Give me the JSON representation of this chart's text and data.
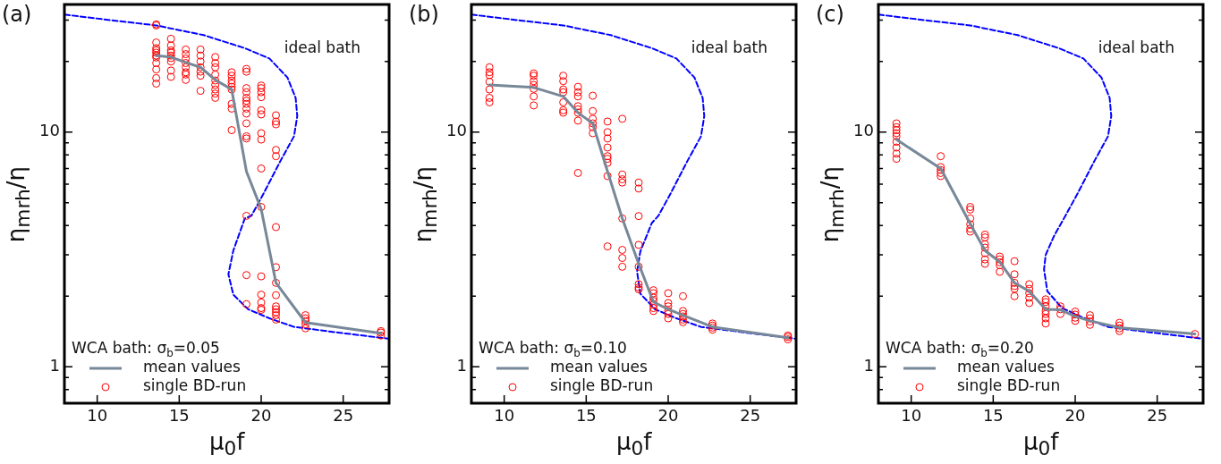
{
  "chart_data": [
    {
      "type": "line",
      "title": "(a)",
      "xlabel": "μ$_{0}$f",
      "ylabel": "η$_{mrh}$/η",
      "legend_title": "WCA bath: σ$_{b}$=0.05",
      "legend": "bottom left",
      "log": "y",
      "xlim": [
        8,
        27.8
      ],
      "xticks": [
        10,
        15,
        20,
        25
      ],
      "ylim": [
        0.71,
        35
      ],
      "yticks": [
        {
          "value": 0.8,
          "label": null
        },
        {
          "value": 0.9,
          "label": null
        },
        {
          "value": 1,
          "label": "1"
        },
        {
          "value": 2,
          "label": null
        },
        {
          "value": 3,
          "label": null
        },
        {
          "value": 4,
          "label": null
        },
        {
          "value": 5,
          "label": null
        },
        {
          "value": 6,
          "label": null
        },
        {
          "value": 7,
          "label": null
        },
        {
          "value": 8,
          "label": null
        },
        {
          "value": 9,
          "label": null
        },
        {
          "value": 10,
          "label": "10"
        },
        {
          "value": 20,
          "label": null
        },
        {
          "value": 30,
          "label": null
        }
      ],
      "annotations": [
        "ideal bath"
      ],
      "series": [
        {
          "name": "mean values",
          "type": "line",
          "color": "#778899",
          "marker": "none",
          "x": [
            13.6,
            14.5,
            15.4,
            16.3,
            17.2,
            18.2,
            19.1,
            20.0,
            20.9,
            22.7,
            27.3
          ],
          "values": [
            21.2,
            20.9,
            19.8,
            18.9,
            16.7,
            15.2,
            6.8,
            4.7,
            2.28,
            1.545,
            1.39
          ]
        },
        {
          "name": "single BD-run",
          "type": "scatter",
          "color": "#ff0000",
          "marker": "circle",
          "x": [
            13.6,
            13.6,
            13.6,
            13.6,
            13.6,
            13.6,
            13.6,
            13.6,
            13.6,
            13.6,
            13.6,
            13.6,
            14.5,
            14.5,
            14.5,
            14.5,
            14.5,
            14.5,
            14.5,
            14.5,
            14.5,
            15.4,
            15.4,
            15.4,
            15.4,
            15.4,
            15.4,
            15.4,
            15.4,
            16.3,
            16.3,
            16.3,
            16.3,
            16.3,
            16.3,
            16.3,
            17.2,
            17.2,
            17.2,
            17.2,
            17.2,
            17.2,
            17.2,
            17.2,
            17.2,
            18.2,
            18.2,
            18.2,
            18.2,
            18.2,
            18.2,
            18.2,
            18.2,
            18.2,
            19.1,
            19.1,
            19.1,
            19.1,
            19.1,
            19.1,
            19.1,
            19.1,
            19.1,
            19.1,
            19.1,
            19.1,
            19.1,
            19.1,
            19.1,
            20.0,
            20.0,
            20.0,
            20.0,
            20.0,
            20.0,
            20.0,
            20.0,
            20.0,
            20.0,
            20.0,
            20.0,
            20.0,
            20.0,
            20.0,
            20.9,
            20.9,
            20.9,
            20.9,
            20.9,
            20.9,
            20.9,
            20.9,
            20.9,
            20.9,
            20.9,
            20.9,
            20.9,
            20.9,
            22.7,
            22.7,
            22.7,
            22.7,
            22.7,
            27.3,
            27.3,
            27.3
          ],
          "values": [
            28.8,
            28.5,
            24.1,
            22.8,
            22.3,
            21.8,
            21.2,
            20.8,
            19.7,
            18.5,
            17.0,
            16.1,
            25.0,
            23.4,
            22.3,
            21.8,
            21.2,
            20.7,
            20.0,
            18.3,
            17.2,
            22.5,
            21.5,
            20.6,
            19.7,
            18.9,
            18.0,
            17.6,
            16.7,
            22.5,
            21.2,
            20.0,
            18.9,
            18.1,
            17.4,
            15.0,
            20.9,
            19.7,
            18.9,
            17.6,
            16.6,
            15.9,
            15.2,
            14.6,
            14.0,
            18.0,
            17.4,
            16.6,
            16.1,
            15.6,
            15.2,
            13.2,
            12.6,
            10.2,
            18.6,
            18.1,
            15.4,
            14.8,
            14.0,
            13.6,
            13.2,
            12.6,
            12.0,
            10.9,
            9.6,
            9.4,
            4.4,
            2.46,
            1.85,
            15.8,
            15.4,
            14.8,
            14.1,
            12.4,
            11.9,
            9.9,
            9.3,
            7.0,
            4.8,
            2.43,
            2.03,
            1.88,
            1.78,
            1.75,
            11.8,
            11.1,
            10.8,
            8.4,
            7.9,
            3.94,
            2.66,
            2.28,
            2.02,
            1.81,
            1.76,
            1.71,
            1.66,
            1.59,
            1.66,
            1.61,
            1.57,
            1.52,
            1.46,
            1.42,
            1.4,
            1.36
          ]
        },
        {
          "type": "line",
          "color": "#0000ff",
          "line_style": "dashed",
          "marker": "none",
          "x": [
            8.0,
            11.0,
            13.6,
            16.5,
            19.0,
            20.5,
            21.6,
            22.1,
            22.2,
            22.0,
            21.2,
            20.1,
            19.4,
            19.0,
            18.3,
            18.0,
            18.3,
            19.2,
            20.5,
            22.0,
            24.7,
            27.7
          ],
          "values": [
            31.7,
            29.9,
            28.5,
            25.9,
            22.8,
            20.6,
            17.1,
            14.0,
            11.7,
            9.6,
            7.6,
            5.4,
            4.4,
            4.29,
            3.13,
            2.48,
            2.03,
            1.76,
            1.61,
            1.48,
            1.4,
            1.32
          ]
        }
      ]
    },
    {
      "type": "line",
      "title": "(b)",
      "xlabel": "μ$_{0}$f",
      "ylabel": "η$_{mrh}$/η",
      "legend_title": "WCA bath: σ$_{b}$=0.10",
      "legend": "bottom left",
      "log": "y",
      "xlim": [
        8,
        27.8
      ],
      "xticks": [
        10,
        15,
        20,
        25
      ],
      "ylim": [
        0.71,
        35
      ],
      "yticks": [
        {
          "value": 0.8,
          "label": null
        },
        {
          "value": 0.9,
          "label": null
        },
        {
          "value": 1,
          "label": "1"
        },
        {
          "value": 2,
          "label": null
        },
        {
          "value": 3,
          "label": null
        },
        {
          "value": 4,
          "label": null
        },
        {
          "value": 5,
          "label": null
        },
        {
          "value": 6,
          "label": null
        },
        {
          "value": 7,
          "label": null
        },
        {
          "value": 8,
          "label": null
        },
        {
          "value": 9,
          "label": null
        },
        {
          "value": 10,
          "label": "10"
        },
        {
          "value": 20,
          "label": null
        },
        {
          "value": 30,
          "label": null
        }
      ],
      "annotations": [
        "ideal bath"
      ],
      "series": [
        {
          "name": "mean values",
          "type": "line",
          "color": "#778899",
          "marker": "none",
          "x": [
            9.1,
            11.8,
            13.6,
            14.5,
            15.4,
            16.3,
            17.2,
            18.2,
            19.1,
            20.0,
            20.9,
            22.7,
            27.3
          ],
          "values": [
            15.9,
            15.5,
            14.2,
            12.1,
            10.9,
            6.8,
            4.29,
            2.75,
            1.89,
            1.76,
            1.66,
            1.48,
            1.33
          ]
        },
        {
          "name": "single BD-run",
          "type": "scatter",
          "color": "#ff0000",
          "marker": "circle",
          "x": [
            9.1,
            9.1,
            9.1,
            9.1,
            9.1,
            9.1,
            9.1,
            11.8,
            11.8,
            11.8,
            11.8,
            11.8,
            11.8,
            11.8,
            13.6,
            13.6,
            13.6,
            13.6,
            13.6,
            13.6,
            13.6,
            14.5,
            14.5,
            14.5,
            14.5,
            14.5,
            14.5,
            14.5,
            14.5,
            15.4,
            15.4,
            15.4,
            15.4,
            15.4,
            15.4,
            16.3,
            16.3,
            16.3,
            16.3,
            16.3,
            16.3,
            16.3,
            16.3,
            16.3,
            17.2,
            17.2,
            17.2,
            17.2,
            17.2,
            17.2,
            17.2,
            17.2,
            18.2,
            18.2,
            18.2,
            18.2,
            18.2,
            18.2,
            18.2,
            18.2,
            19.1,
            19.1,
            19.1,
            19.1,
            19.1,
            19.1,
            19.1,
            20.0,
            20.0,
            20.0,
            20.0,
            20.0,
            20.0,
            20.9,
            20.9,
            20.9,
            20.9,
            20.9,
            20.9,
            22.7,
            22.7,
            22.7,
            22.7,
            27.3,
            27.3,
            27.3
          ],
          "values": [
            18.9,
            18.0,
            17.5,
            16.4,
            15.2,
            14.0,
            13.4,
            17.8,
            17.4,
            16.5,
            15.9,
            15.3,
            14.2,
            13.0,
            17.4,
            16.5,
            15.2,
            14.8,
            13.4,
            12.4,
            12.1,
            15.6,
            14.8,
            14.2,
            12.9,
            12.5,
            12.1,
            11.2,
            6.7,
            14.3,
            12.3,
            11.4,
            10.9,
            10.5,
            9.9,
            11.1,
            10.0,
            9.4,
            8.6,
            7.9,
            7.7,
            7.4,
            6.5,
            3.26,
            11.4,
            6.6,
            6.3,
            6.1,
            4.29,
            3.15,
            2.91,
            2.67,
            6.1,
            5.75,
            4.39,
            3.31,
            2.67,
            2.25,
            2.18,
            2.14,
            2.12,
            2.06,
            1.97,
            1.91,
            1.84,
            1.78,
            1.73,
            2.06,
            1.87,
            1.81,
            1.73,
            1.68,
            1.61,
            2.0,
            1.73,
            1.68,
            1.64,
            1.59,
            1.55,
            1.53,
            1.5,
            1.47,
            1.44,
            1.36,
            1.34,
            1.31
          ]
        },
        {
          "type": "line",
          "color": "#0000ff",
          "line_style": "dashed",
          "marker": "none",
          "x": [
            8.0,
            11.0,
            13.6,
            16.5,
            19.0,
            20.5,
            21.6,
            22.1,
            22.2,
            22.0,
            21.2,
            20.1,
            19.4,
            19.0,
            18.3,
            18.1,
            18.3,
            19.2,
            20.5,
            22.0,
            24.7,
            27.7
          ],
          "values": [
            31.7,
            29.9,
            28.5,
            25.9,
            22.8,
            20.6,
            17.1,
            14.0,
            11.7,
            9.6,
            7.6,
            5.4,
            4.4,
            4.1,
            3.1,
            2.55,
            2.05,
            1.76,
            1.61,
            1.48,
            1.4,
            1.32
          ]
        }
      ]
    },
    {
      "type": "line",
      "title": "(c)",
      "xlabel": "μ$_{0}$f",
      "ylabel": "η$_{mrh}$/η",
      "legend_title": "WCA bath: σ$_{b}$=0.20",
      "legend": "bottom left",
      "log": "y",
      "xlim": [
        8,
        27.8
      ],
      "xticks": [
        10,
        15,
        20,
        25
      ],
      "ylim": [
        0.71,
        35
      ],
      "yticks": [
        {
          "value": 0.8,
          "label": null
        },
        {
          "value": 0.9,
          "label": null
        },
        {
          "value": 1,
          "label": "1"
        },
        {
          "value": 2,
          "label": null
        },
        {
          "value": 3,
          "label": null
        },
        {
          "value": 4,
          "label": null
        },
        {
          "value": 5,
          "label": null
        },
        {
          "value": 6,
          "label": null
        },
        {
          "value": 7,
          "label": null
        },
        {
          "value": 8,
          "label": null
        },
        {
          "value": 9,
          "label": null
        },
        {
          "value": 10,
          "label": "10"
        },
        {
          "value": 20,
          "label": null
        },
        {
          "value": 30,
          "label": null
        }
      ],
      "annotations": [
        "ideal bath"
      ],
      "series": [
        {
          "name": "mean values",
          "type": "line",
          "color": "#778899",
          "marker": "none",
          "x": [
            9.1,
            11.8,
            13.6,
            14.5,
            15.4,
            16.3,
            17.2,
            18.2,
            19.1,
            20.0,
            20.9,
            22.7,
            27.3
          ],
          "values": [
            9.3,
            7.0,
            4.07,
            3.13,
            2.8,
            2.28,
            2.1,
            1.76,
            1.75,
            1.64,
            1.57,
            1.47,
            1.38
          ]
        },
        {
          "name": "single BD-run",
          "type": "scatter",
          "color": "#ff0000",
          "marker": "circle",
          "x": [
            9.1,
            9.1,
            9.1,
            9.1,
            9.1,
            9.1,
            9.1,
            9.1,
            9.1,
            11.8,
            11.8,
            11.8,
            11.8,
            11.8,
            13.6,
            13.6,
            13.6,
            13.6,
            13.6,
            13.6,
            14.5,
            14.5,
            14.5,
            14.5,
            14.5,
            14.5,
            14.5,
            15.4,
            15.4,
            15.4,
            15.4,
            15.4,
            16.3,
            16.3,
            16.3,
            16.3,
            16.3,
            16.3,
            17.2,
            17.2,
            17.2,
            17.2,
            17.2,
            18.2,
            18.2,
            18.2,
            18.2,
            18.2,
            18.2,
            18.2,
            19.1,
            19.1,
            19.1,
            20.0,
            20.0,
            20.0,
            20.0,
            20.9,
            20.9,
            20.9,
            20.9,
            22.7,
            22.7,
            22.7,
            22.7,
            27.3
          ],
          "values": [
            10.9,
            10.5,
            10.2,
            9.9,
            9.6,
            9.1,
            8.6,
            8.1,
            7.7,
            7.9,
            7.1,
            6.9,
            6.7,
            6.5,
            4.8,
            4.68,
            4.29,
            4.05,
            3.88,
            3.77,
            3.66,
            3.56,
            3.33,
            3.22,
            3.05,
            2.87,
            2.75,
            2.95,
            2.87,
            2.79,
            2.71,
            2.54,
            2.82,
            2.48,
            2.28,
            2.21,
            2.15,
            2.0,
            2.25,
            2.15,
            2.06,
            1.97,
            1.87,
            1.94,
            1.89,
            1.81,
            1.73,
            1.68,
            1.61,
            1.53,
            1.81,
            1.76,
            1.68,
            1.72,
            1.67,
            1.62,
            1.57,
            1.66,
            1.61,
            1.56,
            1.51,
            1.54,
            1.5,
            1.46,
            1.42,
            1.38
          ]
        },
        {
          "type": "line",
          "color": "#0000ff",
          "line_style": "dashed",
          "marker": "none",
          "x": [
            8.0,
            11.0,
            13.6,
            16.5,
            19.0,
            20.5,
            21.6,
            22.1,
            22.2,
            22.0,
            21.2,
            20.1,
            19.4,
            18.7,
            18.2,
            18.1,
            18.3,
            19.2,
            20.5,
            22.0,
            24.7,
            27.7
          ],
          "values": [
            31.7,
            29.9,
            28.5,
            25.9,
            22.8,
            20.6,
            17.1,
            14.0,
            11.7,
            9.6,
            7.6,
            5.4,
            4.4,
            3.6,
            3.0,
            2.6,
            2.1,
            1.78,
            1.62,
            1.48,
            1.4,
            1.32
          ]
        }
      ]
    }
  ]
}
